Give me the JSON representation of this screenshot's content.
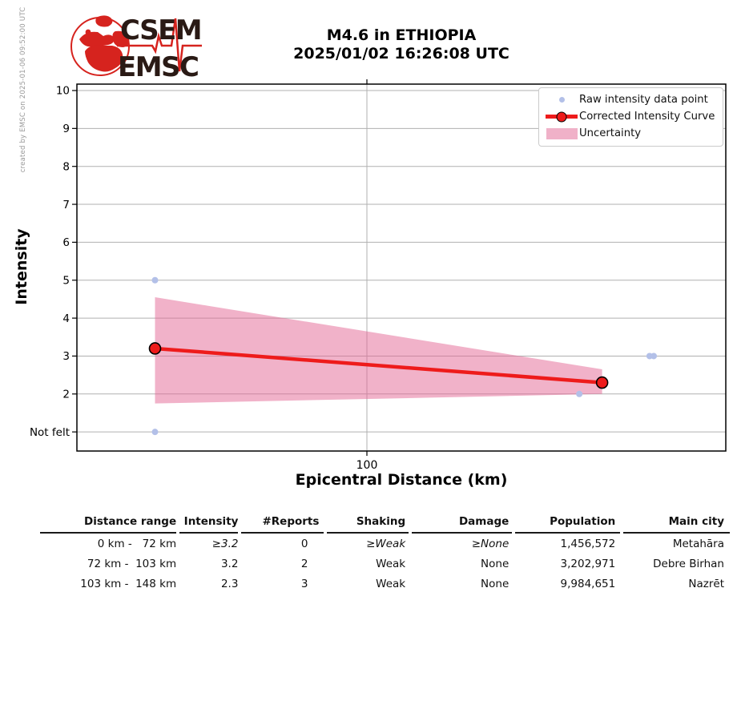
{
  "credit": "created by EMSC on 2025-01-06 09:52:00 UTC",
  "logo": {
    "line1": "CSEM",
    "line2": "EMSC"
  },
  "title": {
    "line1": "M4.6 in ETHIOPIA",
    "line2": "2025/01/02 16:26:08 UTC"
  },
  "colors": {
    "accent_red": "#ee1b1b",
    "raw_point": "#b3c0e8",
    "band_fill": "#e36593",
    "band_opacity": 0.5,
    "band_swatch": "#f0b1c8",
    "grid": "#b0b0b0",
    "frame": "#000000",
    "logo_red": "#d6231e",
    "logo_dark": "#2a1a15",
    "credit_gray": "#9a9a9a"
  },
  "chart_data": {
    "type": "line",
    "title": "M4.6 in ETHIOPIA 2025/01/02 16:26:08 UTC",
    "xlabel": "Epicentral Distance (km)",
    "ylabel": "Intensity",
    "x_scale": "log",
    "xlim_km": [
      64,
      175
    ],
    "ylim": [
      0.5,
      10.17
    ],
    "grid": true,
    "legend_position": "upper right",
    "x_ticks": [
      {
        "value": 100,
        "label": "100"
      }
    ],
    "y_ticks": [
      {
        "value": 10,
        "label": "10"
      },
      {
        "value": 9,
        "label": "9"
      },
      {
        "value": 8,
        "label": "8"
      },
      {
        "value": 7,
        "label": "7"
      },
      {
        "value": 6,
        "label": "6"
      },
      {
        "value": 5,
        "label": "5"
      },
      {
        "value": 4,
        "label": "4"
      },
      {
        "value": 3,
        "label": "3"
      },
      {
        "value": 2,
        "label": "2"
      },
      {
        "value": 1,
        "label": "Not felt"
      }
    ],
    "legend": [
      {
        "label": "Raw intensity data point",
        "marker": "dot"
      },
      {
        "label": "Corrected Intensity Curve",
        "marker": "line-circle"
      },
      {
        "label": "Uncertainty",
        "marker": "band"
      }
    ],
    "raw_points": [
      {
        "distance_km": 72,
        "intensity": 5
      },
      {
        "distance_km": 72,
        "intensity": 1,
        "note": "Not felt"
      },
      {
        "distance_km": 139,
        "intensity": 2
      },
      {
        "distance_km": 155,
        "intensity": 3
      },
      {
        "distance_km": 156,
        "intensity": 3
      }
    ],
    "corrected_curve": [
      {
        "distance_km": 72,
        "intensity": 3.2
      },
      {
        "distance_km": 144,
        "intensity": 2.3
      }
    ],
    "uncertainty_band": [
      {
        "distance_km": 72,
        "upper": 4.55,
        "lower": 1.75
      },
      {
        "distance_km": 144,
        "upper": 2.65,
        "lower": 2.0
      }
    ]
  },
  "table": {
    "headers": [
      "Distance range",
      "Intensity",
      "#Reports",
      "Shaking",
      "Damage",
      "Population",
      "Main city"
    ],
    "rows": [
      [
        "0 km -   72 km",
        "≥3.2",
        "0",
        "≥Weak",
        "≥None",
        "1,456,572",
        "Metahāra"
      ],
      [
        "72 km -  103 km",
        "3.2",
        "2",
        "Weak",
        "None",
        "3,202,971",
        "Debre Birhan"
      ],
      [
        "103 km -  148 km",
        "2.3",
        "3",
        "Weak",
        "None",
        "9,984,651",
        "Nazrēt"
      ]
    ]
  }
}
